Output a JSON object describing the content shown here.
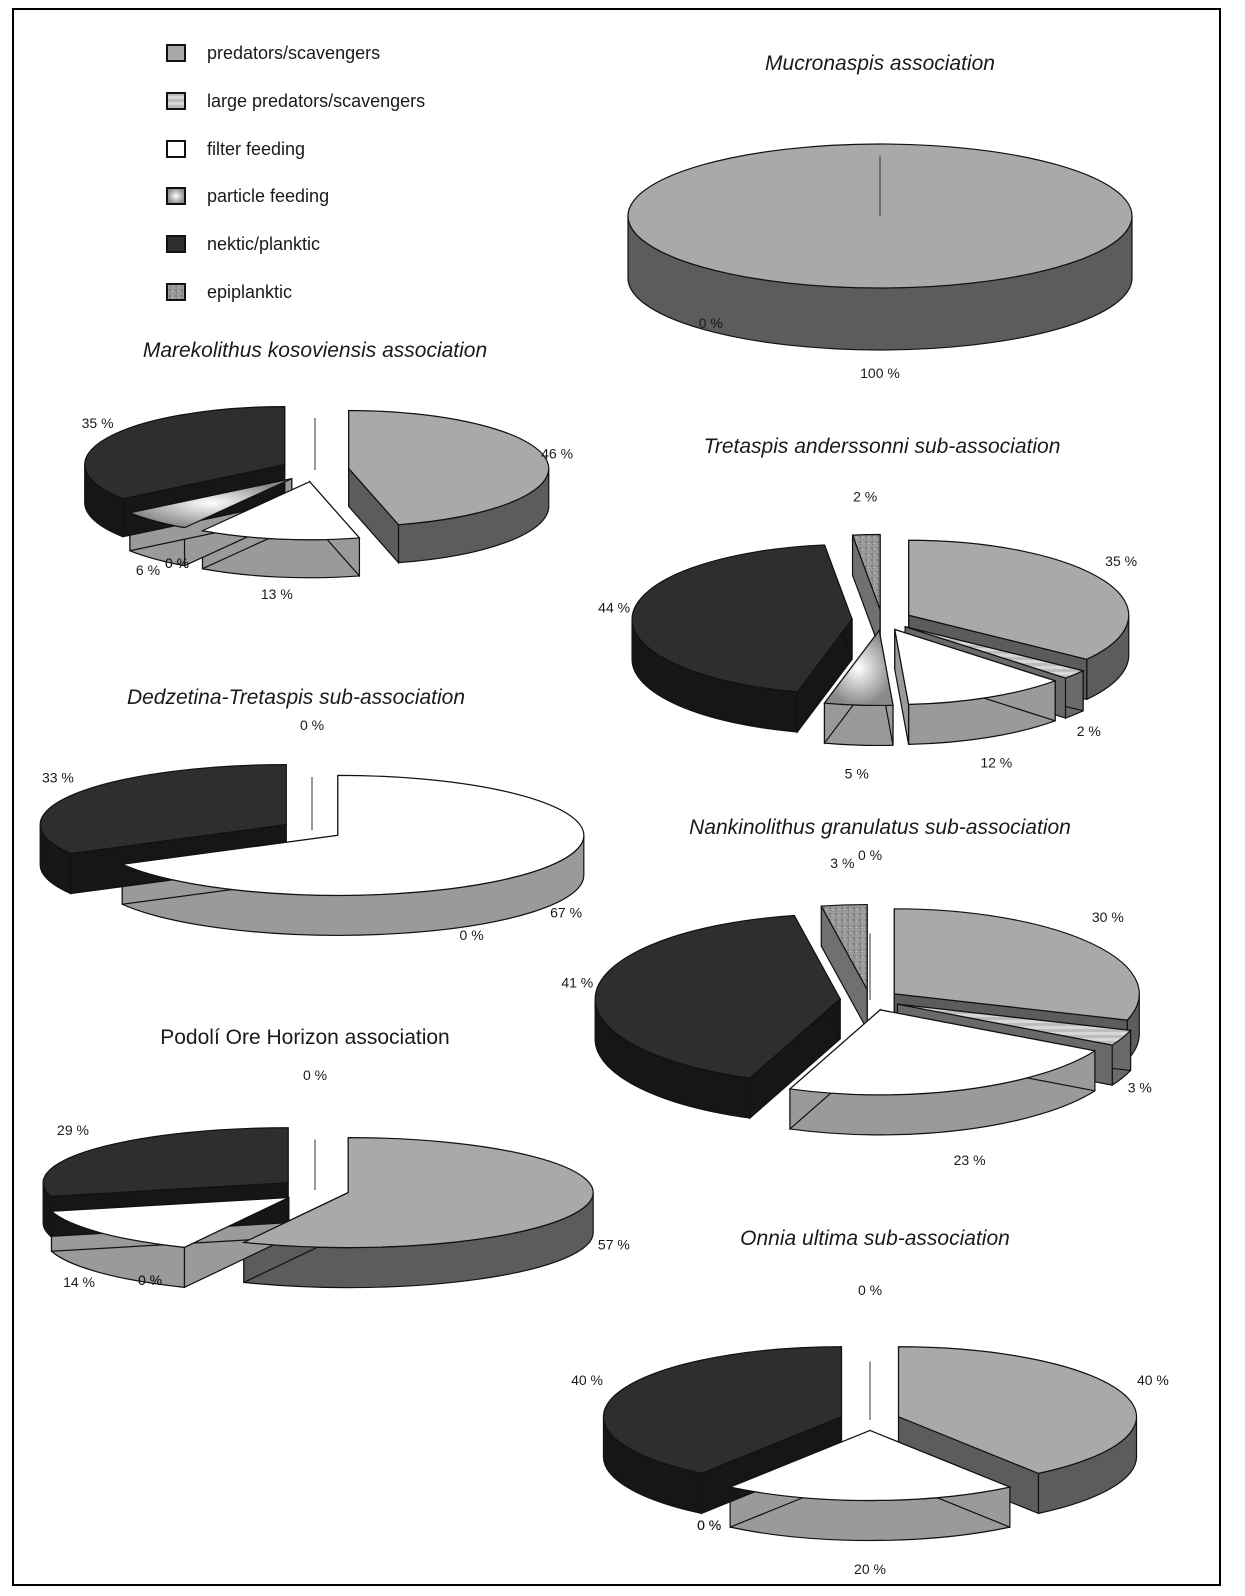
{
  "legend": [
    {
      "label": "predators/scavengers",
      "fill": "#a9a9a9",
      "pattern": "solid"
    },
    {
      "label": "large predators/scavengers",
      "fill": "#c4c4c4",
      "pattern": "stripes"
    },
    {
      "label": "filter feeding",
      "fill": "#ffffff",
      "pattern": "solid"
    },
    {
      "label": "particle feeding",
      "fill": "#dcdcdc",
      "pattern": "radial"
    },
    {
      "label": "nektic/planktic",
      "fill": "#2e2e2e",
      "pattern": "solid"
    },
    {
      "label": "epiplanktic",
      "fill": "#8c8c8c",
      "pattern": "speckle"
    }
  ],
  "chart_data": [
    {
      "type": "pie",
      "title": "Mucronaspis association",
      "title_style": "italic",
      "slices": [
        {
          "category": "predators/scavengers",
          "value": 100,
          "label": "100 %"
        },
        {
          "category": "nektic/planktic",
          "value": 0,
          "label": "0 %"
        }
      ]
    },
    {
      "type": "pie",
      "title": "Marekolithus kosoviensis association",
      "title_style": "italic",
      "slices": [
        {
          "category": "predators/scavengers",
          "value": 46,
          "label": "46 %"
        },
        {
          "category": "large predators/scavengers",
          "value": 0,
          "label": "0 %"
        },
        {
          "category": "filter feeding",
          "value": 13,
          "label": "13 %"
        },
        {
          "category": "particle feeding",
          "value": 6,
          "label": "6 %"
        },
        {
          "category": "nektic/planktic",
          "value": 35,
          "label": "35 %"
        },
        {
          "category": "epiplanktic",
          "value": 0,
          "label": "0 %"
        }
      ]
    },
    {
      "type": "pie",
      "title": "Tretaspis anderssonni sub-association",
      "title_style": "italic",
      "slices": [
        {
          "category": "predators/scavengers",
          "value": 35,
          "label": "35 %"
        },
        {
          "category": "large predators/scavengers",
          "value": 2,
          "label": "2 %"
        },
        {
          "category": "filter feeding",
          "value": 12,
          "label": "12 %"
        },
        {
          "category": "particle feeding",
          "value": 5,
          "label": "5 %"
        },
        {
          "category": "nektic/planktic",
          "value": 44,
          "label": "44 %"
        },
        {
          "category": "epiplanktic",
          "value": 2,
          "label": "2 %"
        }
      ]
    },
    {
      "type": "pie",
      "title": "Dedzetina-Tretaspis  sub-association",
      "title_style": "italic",
      "slices": [
        {
          "category": "predators/scavengers",
          "value": 0,
          "label": "0 %"
        },
        {
          "category": "filter feeding",
          "value": 67,
          "label": "67 %"
        },
        {
          "category": "particle feeding",
          "value": 0,
          "label": "0 %"
        },
        {
          "category": "nektic/planktic",
          "value": 33,
          "label": "33 %"
        }
      ]
    },
    {
      "type": "pie",
      "title": "Nankinolithus granulatus sub-association",
      "title_style": "italic",
      "slices": [
        {
          "category": "predators/scavengers",
          "value": 30,
          "label": "30 %"
        },
        {
          "category": "large predators/scavengers",
          "value": 3,
          "label": "3 %"
        },
        {
          "category": "filter feeding",
          "value": 23,
          "label": "23 %"
        },
        {
          "category": "particle feeding",
          "value": 0,
          "label": "0 %"
        },
        {
          "category": "nektic/planktic",
          "value": 41,
          "label": "41 %"
        },
        {
          "category": "epiplanktic",
          "value": 3,
          "label": "3 %"
        }
      ]
    },
    {
      "type": "pie",
      "title": "Podolí Ore Horizon association",
      "title_style": "normal",
      "slices": [
        {
          "category": "predators/scavengers",
          "value": 57,
          "label": "57 %"
        },
        {
          "category": "large predators/scavengers",
          "value": 0,
          "label": "0 %"
        },
        {
          "category": "filter feeding",
          "value": 14,
          "label": "14 %"
        },
        {
          "category": "particle feeding",
          "value": 0,
          "label": "0 %"
        },
        {
          "category": "nektic/planktic",
          "value": 29,
          "label": "29 %"
        },
        {
          "category": "epiplanktic",
          "value": 0,
          "label": "0 %"
        }
      ]
    },
    {
      "type": "pie",
      "title": "Onnia ultima sub-association",
      "title_style": "italic",
      "slices": [
        {
          "category": "predators/scavengers",
          "value": 40,
          "label": "40 %"
        },
        {
          "category": "large predators/scavengers",
          "value": 0,
          "label": "0 %"
        },
        {
          "category": "filter feeding",
          "value": 20,
          "label": "20 %"
        },
        {
          "category": "particle feeding",
          "value": 0,
          "label": "0 %"
        },
        {
          "category": "nektic/planktic",
          "value": 40,
          "label": "40 %"
        },
        {
          "category": "epiplanktic",
          "value": 0,
          "label": "0 %"
        }
      ]
    }
  ]
}
